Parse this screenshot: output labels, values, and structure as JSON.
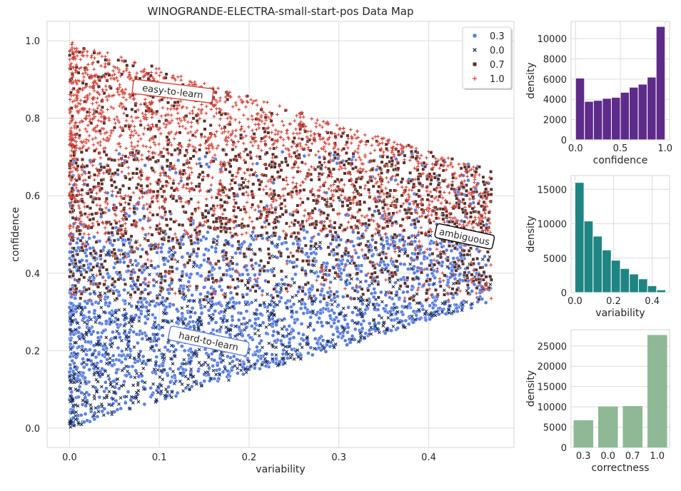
{
  "colors": {
    "pos_0_3": "#5b7fe1",
    "pos_0_0": "#1b2747",
    "pos_0_7": "#5b2f2a",
    "pos_1_0": "#d2463c",
    "hist_confidence": "#5e2b8a",
    "hist_variability": "#1f8582",
    "bar_correctness": "#8fb996",
    "grid": "#dcdcdc",
    "axes_bg": "#ffffff"
  },
  "chart_data": [
    {
      "type": "scatter",
      "title": "WINOGRANDE-ELECTRA-small-start-pos Data Map",
      "xlabel": "variability",
      "ylabel": "confidence",
      "xlim": [
        -0.025,
        0.495
      ],
      "ylim": [
        -0.05,
        1.05
      ],
      "xticks": [
        "0.0",
        "0.1",
        "0.2",
        "0.3",
        "0.4"
      ],
      "xtick_values": [
        0.0,
        0.1,
        0.2,
        0.3,
        0.4
      ],
      "yticks": [
        "0.0",
        "0.2",
        "0.4",
        "0.6",
        "0.8",
        "1.0"
      ],
      "ytick_values": [
        0.0,
        0.2,
        0.4,
        0.6,
        0.8,
        1.0
      ],
      "grid": true,
      "legend_position": "top-right",
      "legend": [
        {
          "label": "0.3",
          "marker": "circle",
          "color_key": "pos_0_3"
        },
        {
          "label": "0.0",
          "marker": "x",
          "color_key": "pos_0_0"
        },
        {
          "label": "0.7",
          "marker": "square",
          "color_key": "pos_0_7"
        },
        {
          "label": "1.0",
          "marker": "plus",
          "color_key": "pos_1_0"
        }
      ],
      "region_boundary": {
        "apex": [
          0.47,
          0.665
        ],
        "upper_left": [
          0.0,
          1.0
        ],
        "lower_left": [
          0.0,
          0.0
        ]
      },
      "annotations": [
        {
          "text": "easy-to-learn",
          "x": 0.115,
          "y": 0.87,
          "rotation": 7,
          "style": "easy"
        },
        {
          "text": "ambiguous",
          "x": 0.44,
          "y": 0.495,
          "rotation": 12,
          "style": "ambiguous"
        },
        {
          "text": "hard-to-learn",
          "x": 0.155,
          "y": 0.225,
          "rotation": 12,
          "style": "hard"
        }
      ]
    },
    {
      "type": "bar",
      "role": "histogram",
      "xlabel": "confidence",
      "ylabel": "density",
      "xlim": [
        -0.05,
        1.05
      ],
      "ylim": [
        0,
        11700
      ],
      "bin_edges": [
        0.0,
        0.1,
        0.2,
        0.3,
        0.4,
        0.5,
        0.6,
        0.7,
        0.8,
        0.9,
        1.0
      ],
      "values": [
        6100,
        3800,
        3900,
        4100,
        4200,
        4700,
        5200,
        5500,
        6200,
        11200
      ],
      "xticks": [
        "0.0",
        "0.5",
        "1.0"
      ],
      "xtick_values": [
        0.0,
        0.5,
        1.0
      ],
      "yticks": [
        "0",
        "2000",
        "4000",
        "6000",
        "8000",
        "10000"
      ],
      "ytick_values": [
        0,
        2000,
        4000,
        6000,
        8000,
        10000
      ],
      "color_key": "hist_confidence"
    },
    {
      "type": "bar",
      "role": "histogram",
      "xlabel": "variability",
      "ylabel": "density",
      "xlim": [
        -0.02,
        0.49
      ],
      "ylim": [
        0,
        17000
      ],
      "bin_edges": [
        0.0,
        0.047,
        0.094,
        0.141,
        0.188,
        0.235,
        0.282,
        0.329,
        0.376,
        0.423,
        0.47
      ],
      "values": [
        16000,
        10400,
        8200,
        6200,
        4700,
        3500,
        2700,
        2000,
        1000,
        400
      ],
      "xticks": [
        "0.0",
        "0.2",
        "0.4"
      ],
      "xtick_values": [
        0.0,
        0.2,
        0.4
      ],
      "yticks": [
        "0",
        "5000",
        "10000",
        "15000"
      ],
      "ytick_values": [
        0,
        5000,
        10000,
        15000
      ],
      "color_key": "hist_variability"
    },
    {
      "type": "bar",
      "xlabel": "correctness",
      "ylabel": "density",
      "categories": [
        "0.3",
        "0.0",
        "0.7",
        "1.0"
      ],
      "values": [
        6700,
        10100,
        10200,
        27700
      ],
      "ylim": [
        0,
        29000
      ],
      "yticks": [
        "0",
        "5000",
        "10000",
        "15000",
        "20000",
        "25000"
      ],
      "ytick_values": [
        0,
        5000,
        10000,
        15000,
        20000,
        25000
      ],
      "color_key": "bar_correctness"
    }
  ]
}
